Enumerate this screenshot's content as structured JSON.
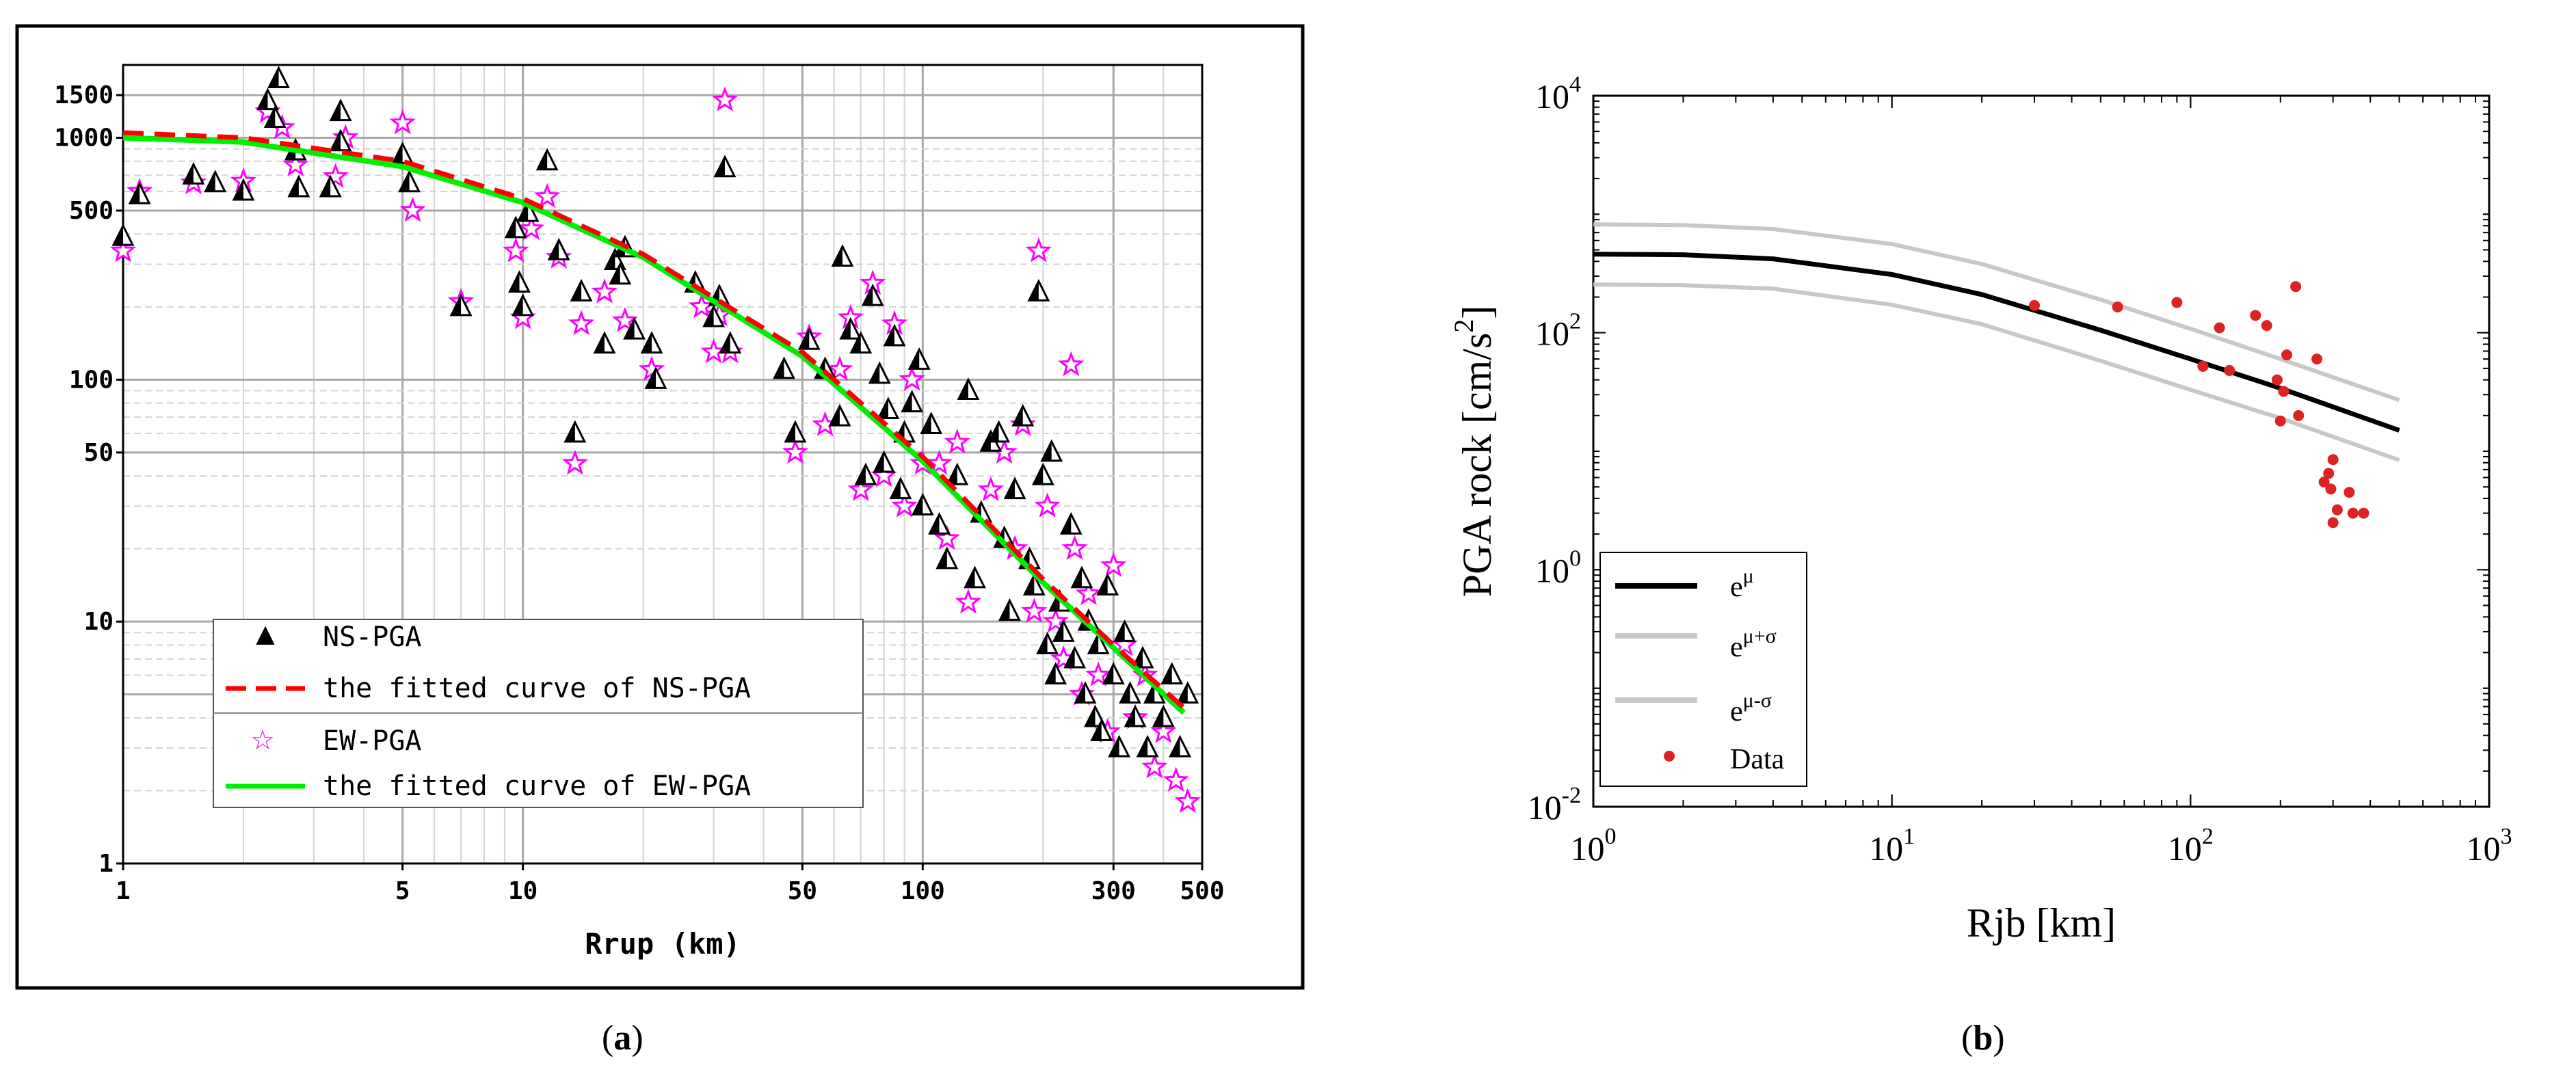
{
  "panel_labels": {
    "a": {
      "open": "(",
      "letter": "a",
      "close": ")"
    },
    "b": {
      "open": "(",
      "letter": "b",
      "close": ")"
    }
  },
  "colors": {
    "ns_marker": "#000000",
    "ns_fit": "#ff0000",
    "ew_marker": "#ff00ff",
    "ew_fit": "#00ee00",
    "b_mean": "#000000",
    "b_band": "#c8c8c8",
    "b_data": "#dd2222"
  },
  "chart_data": [
    {
      "type": "scatter",
      "panel": "a",
      "xscale": "log",
      "yscale": "log",
      "xlim": [
        1,
        500
      ],
      "ylim": [
        1,
        2000
      ],
      "xlabel": "Rrup (km)",
      "ylabel": "",
      "xticks": [
        1,
        5,
        10,
        50,
        100,
        300,
        500
      ],
      "xtick_labels": [
        "1",
        "5",
        "10",
        "50",
        "100",
        "300",
        "500"
      ],
      "yticks": [
        1,
        10,
        50,
        100,
        500,
        1000,
        1500
      ],
      "ytick_labels": [
        "1",
        "10",
        "50",
        "100",
        "500",
        "1000",
        "1500"
      ],
      "grid": true,
      "legend_position": "bottom-left",
      "legend": [
        "NS-PGA",
        "the fitted curve of NS-PGA",
        "EW-PGA",
        "the fitted curve of EW-PGA"
      ],
      "series": [
        {
          "name": "NS-PGA",
          "kind": "scatter",
          "marker": "triangle",
          "points": [
            [
              1,
              390
            ],
            [
              1.1,
              580
            ],
            [
              1.5,
              700
            ],
            [
              1.7,
              650
            ],
            [
              2,
              600
            ],
            [
              2.3,
              1420
            ],
            [
              2.45,
              1750
            ],
            [
              2.4,
              1200
            ],
            [
              2.7,
              880
            ],
            [
              2.75,
              620
            ],
            [
              3.3,
              620
            ],
            [
              3.5,
              1280
            ],
            [
              3.5,
              960
            ],
            [
              5,
              850
            ],
            [
              5.2,
              650
            ],
            [
              7,
              200
            ],
            [
              9.6,
              420
            ],
            [
              9.8,
              250
            ],
            [
              10,
              200
            ],
            [
              10.3,
              490
            ],
            [
              11.5,
              800
            ],
            [
              12.3,
              340
            ],
            [
              13.5,
              60
            ],
            [
              14,
              230
            ],
            [
              16,
              140
            ],
            [
              17,
              310
            ],
            [
              17.5,
              270
            ],
            [
              18,
              350
            ],
            [
              19,
              160
            ],
            [
              21,
              140
            ],
            [
              21.5,
              100
            ],
            [
              27,
              250
            ],
            [
              30,
              180
            ],
            [
              31,
              220
            ],
            [
              32,
              750
            ],
            [
              33,
              140
            ],
            [
              45,
              110
            ],
            [
              48,
              60
            ],
            [
              52,
              145
            ],
            [
              57,
              110
            ],
            [
              62,
              70
            ],
            [
              63,
              320
            ],
            [
              66,
              160
            ],
            [
              70,
              140
            ],
            [
              72,
              40
            ],
            [
              75,
              220
            ],
            [
              78,
              105
            ],
            [
              80,
              45
            ],
            [
              82,
              75
            ],
            [
              85,
              150
            ],
            [
              88,
              35
            ],
            [
              90,
              60
            ],
            [
              94,
              80
            ],
            [
              98,
              120
            ],
            [
              100,
              30
            ],
            [
              105,
              65
            ],
            [
              110,
              25
            ],
            [
              115,
              18
            ],
            [
              122,
              40
            ],
            [
              130,
              90
            ],
            [
              135,
              15
            ],
            [
              140,
              28
            ],
            [
              148,
              55
            ],
            [
              155,
              60
            ],
            [
              160,
              22
            ],
            [
              165,
              11
            ],
            [
              170,
              35
            ],
            [
              178,
              70
            ],
            [
              185,
              18
            ],
            [
              190,
              14
            ],
            [
              195,
              230
            ],
            [
              200,
              40
            ],
            [
              205,
              8
            ],
            [
              210,
              50
            ],
            [
              215,
              6
            ],
            [
              220,
              12
            ],
            [
              225,
              9
            ],
            [
              235,
              25
            ],
            [
              240,
              7
            ],
            [
              250,
              15
            ],
            [
              255,
              5
            ],
            [
              260,
              10
            ],
            [
              270,
              4
            ],
            [
              275,
              8
            ],
            [
              280,
              3.5
            ],
            [
              290,
              14
            ],
            [
              300,
              6
            ],
            [
              310,
              3
            ],
            [
              320,
              9
            ],
            [
              330,
              5
            ],
            [
              340,
              4
            ],
            [
              355,
              7
            ],
            [
              365,
              3
            ],
            [
              380,
              5
            ],
            [
              400,
              4
            ],
            [
              420,
              6
            ],
            [
              440,
              3
            ],
            [
              460,
              5
            ]
          ]
        },
        {
          "name": "the fitted curve of NS-PGA",
          "kind": "line",
          "style": "dashed",
          "points": [
            [
              1,
              1050
            ],
            [
              2,
              1000
            ],
            [
              5,
              800
            ],
            [
              10,
              560
            ],
            [
              20,
              330
            ],
            [
              50,
              130
            ],
            [
              100,
              48
            ],
            [
              200,
              15
            ],
            [
              300,
              8
            ],
            [
              450,
              4.4
            ]
          ]
        },
        {
          "name": "EW-PGA",
          "kind": "scatter",
          "marker": "star",
          "points": [
            [
              1,
              340
            ],
            [
              1.1,
              600
            ],
            [
              1.5,
              650
            ],
            [
              2,
              660
            ],
            [
              2.3,
              1280
            ],
            [
              2.5,
              1100
            ],
            [
              2.7,
              770
            ],
            [
              3.4,
              690
            ],
            [
              3.6,
              1000
            ],
            [
              5,
              1150
            ],
            [
              5.3,
              500
            ],
            [
              7,
              210
            ],
            [
              9.6,
              340
            ],
            [
              10,
              180
            ],
            [
              10.5,
              420
            ],
            [
              11.5,
              570
            ],
            [
              12.3,
              320
            ],
            [
              13.5,
              45
            ],
            [
              14,
              170
            ],
            [
              16,
              230
            ],
            [
              18,
              175
            ],
            [
              21,
              110
            ],
            [
              28,
              200
            ],
            [
              30,
              130
            ],
            [
              31,
              185
            ],
            [
              32,
              1430
            ],
            [
              33,
              130
            ],
            [
              48,
              50
            ],
            [
              52,
              150
            ],
            [
              57,
              65
            ],
            [
              62,
              110
            ],
            [
              66,
              180
            ],
            [
              70,
              35
            ],
            [
              75,
              250
            ],
            [
              80,
              40
            ],
            [
              85,
              170
            ],
            [
              90,
              30
            ],
            [
              94,
              100
            ],
            [
              100,
              45
            ],
            [
              110,
              45
            ],
            [
              115,
              22
            ],
            [
              122,
              55
            ],
            [
              130,
              12
            ],
            [
              148,
              35
            ],
            [
              160,
              50
            ],
            [
              170,
              20
            ],
            [
              178,
              65
            ],
            [
              190,
              11
            ],
            [
              195,
              340
            ],
            [
              205,
              30
            ],
            [
              215,
              10
            ],
            [
              225,
              7
            ],
            [
              235,
              115
            ],
            [
              240,
              20
            ],
            [
              250,
              5
            ],
            [
              260,
              13
            ],
            [
              275,
              6
            ],
            [
              290,
              3.5
            ],
            [
              300,
              17
            ],
            [
              320,
              8
            ],
            [
              340,
              4
            ],
            [
              360,
              6
            ],
            [
              380,
              2.5
            ],
            [
              400,
              3.5
            ],
            [
              430,
              2.2
            ],
            [
              460,
              1.8
            ]
          ]
        },
        {
          "name": "the fitted curve of EW-PGA",
          "kind": "line",
          "style": "solid",
          "points": [
            [
              1,
              1000
            ],
            [
              2,
              960
            ],
            [
              5,
              760
            ],
            [
              10,
              540
            ],
            [
              20,
              320
            ],
            [
              50,
              125
            ],
            [
              100,
              46
            ],
            [
              200,
              14.5
            ],
            [
              300,
              7.8
            ],
            [
              450,
              4.2
            ]
          ]
        }
      ]
    },
    {
      "type": "line",
      "panel": "b",
      "xscale": "log",
      "yscale": "log",
      "xlim": [
        1,
        1000
      ],
      "ylim": [
        0.01,
        10000
      ],
      "xlabel": "Rjb [km]",
      "ylabel": "PGA rock [cm/s²]",
      "ylabel_parts": {
        "main": "PGA rock [cm/s",
        "sup": "2",
        "close": "]"
      },
      "tick_labels": {
        "base": "10",
        "x_exp": [
          "0",
          "1",
          "2",
          "3"
        ],
        "y_exp": [
          "-2",
          "0",
          "2",
          "4"
        ]
      },
      "xticks": [
        1,
        10,
        100,
        1000
      ],
      "yticks": [
        0.01,
        1,
        100,
        10000
      ],
      "grid": false,
      "legend_position": "bottom-left",
      "legend": [
        {
          "base": "e",
          "sup": "μ"
        },
        {
          "base": "e",
          "sup": "μ+σ"
        },
        {
          "base": "e",
          "sup": "μ-σ"
        },
        {
          "base": "Data",
          "sup": ""
        }
      ],
      "series": [
        {
          "name": "e^μ",
          "kind": "line",
          "points": [
            [
              1,
              460
            ],
            [
              2,
              455
            ],
            [
              4,
              420
            ],
            [
              10,
              310
            ],
            [
              20,
              210
            ],
            [
              50,
              105
            ],
            [
              100,
              60
            ],
            [
              200,
              34
            ],
            [
              500,
              15
            ]
          ]
        },
        {
          "name": "e^(μ+σ)",
          "kind": "line",
          "points": [
            [
              1,
              820
            ],
            [
              2,
              810
            ],
            [
              4,
              750
            ],
            [
              10,
              560
            ],
            [
              20,
              380
            ],
            [
              50,
              190
            ],
            [
              100,
              108
            ],
            [
              200,
              60
            ],
            [
              500,
              27
            ]
          ]
        },
        {
          "name": "e^(μ-σ)",
          "kind": "line",
          "points": [
            [
              1,
              255
            ],
            [
              2,
              252
            ],
            [
              4,
              235
            ],
            [
              10,
              172
            ],
            [
              20,
              118
            ],
            [
              50,
              58
            ],
            [
              100,
              33
            ],
            [
              200,
              19
            ],
            [
              500,
              8.4
            ]
          ]
        },
        {
          "name": "Data",
          "kind": "scatter",
          "points": [
            [
              30,
              170
            ],
            [
              57,
              165
            ],
            [
              90,
              180
            ],
            [
              110,
              52
            ],
            [
              125,
              110
            ],
            [
              135,
              48
            ],
            [
              165,
              140
            ],
            [
              180,
              115
            ],
            [
              195,
              40
            ],
            [
              200,
              18
            ],
            [
              205,
              32
            ],
            [
              210,
              65
            ],
            [
              225,
              245
            ],
            [
              230,
              20
            ],
            [
              265,
              60
            ],
            [
              280,
              5.5
            ],
            [
              290,
              6.5
            ],
            [
              295,
              4.8
            ],
            [
              300,
              8.5
            ],
            [
              300,
              2.5
            ],
            [
              310,
              3.2
            ],
            [
              340,
              4.5
            ],
            [
              350,
              3.0
            ],
            [
              380,
              3.0
            ]
          ]
        }
      ]
    }
  ]
}
